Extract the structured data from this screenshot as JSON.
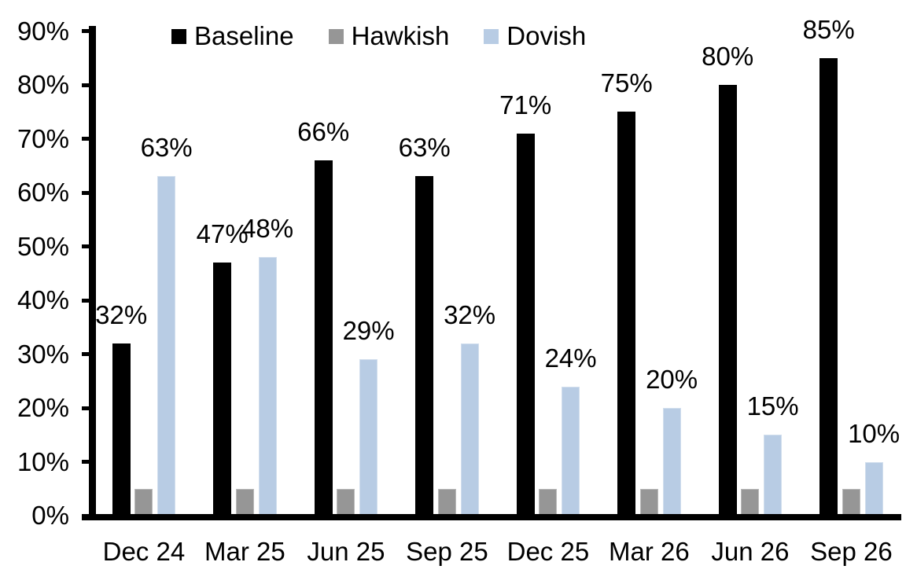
{
  "chart_data": {
    "type": "bar",
    "title": "",
    "categories": [
      "Dec 24",
      "Mar 25",
      "Jun 25",
      "Sep 25",
      "Dec 25",
      "Mar 26",
      "Jun 26",
      "Sep 26"
    ],
    "series": [
      {
        "name": "Baseline",
        "color": "#000000",
        "values": [
          32,
          47,
          66,
          63,
          71,
          75,
          80,
          85
        ],
        "data_labels": [
          "32%",
          "47%",
          "66%",
          "63%",
          "71%",
          "75%",
          "80%",
          "85%"
        ],
        "labels_shown": true
      },
      {
        "name": "Hawkish",
        "color": "#969696",
        "values": [
          5,
          5,
          5,
          5,
          5,
          5,
          5,
          5
        ],
        "data_labels": [],
        "labels_shown": false
      },
      {
        "name": "Dovish",
        "color": "#B8CCE4",
        "values": [
          63,
          48,
          29,
          32,
          24,
          20,
          15,
          10
        ],
        "data_labels": [
          "63%",
          "48%",
          "29%",
          "32%",
          "24%",
          "20%",
          "15%",
          "10%"
        ],
        "labels_shown": true
      }
    ],
    "y_axis": {
      "min": 0,
      "max": 90,
      "step": 10,
      "tick_labels": [
        "0%",
        "10%",
        "20%",
        "30%",
        "40%",
        "50%",
        "60%",
        "70%",
        "80%",
        "90%"
      ],
      "format": "percent"
    },
    "x_axis": {
      "tick_labels": [
        "Dec 24",
        "Mar 25",
        "Jun 25",
        "Sep 25",
        "Dec 25",
        "Mar 26",
        "Jun 26",
        "Sep 26"
      ]
    },
    "legend": {
      "position": "top",
      "items": [
        "Baseline",
        "Hawkish",
        "Dovish"
      ]
    },
    "grid": false,
    "plot_background": "#ffffff",
    "axis_color": "#000000",
    "data_label_format": "percent"
  }
}
